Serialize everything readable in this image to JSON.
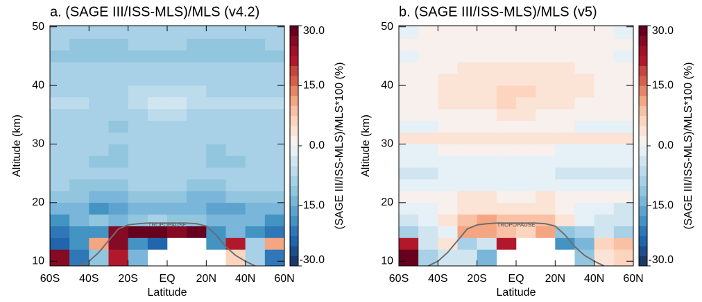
{
  "chart_data": [
    {
      "type": "heatmap",
      "title": "a. (SAGE III/ISS-MLS)/MLS  (v4.2)",
      "xlabel": "Latitude",
      "ylabel": "Altitude (km)",
      "xlim": [
        -60,
        60
      ],
      "ylim": [
        9.2,
        50.2
      ],
      "xticks": [
        {
          "value": -60,
          "label": "60S"
        },
        {
          "value": -40,
          "label": "40S"
        },
        {
          "value": -20,
          "label": "20S"
        },
        {
          "value": 0,
          "label": "EQ"
        },
        {
          "value": 20,
          "label": "20N"
        },
        {
          "value": 40,
          "label": "40N"
        },
        {
          "value": 60,
          "label": "60N"
        }
      ],
      "yticks": [
        10,
        20,
        30,
        40,
        50
      ],
      "x_edges": [
        -60,
        -50,
        -40,
        -30,
        -20,
        -10,
        0,
        10,
        20,
        30,
        40,
        50,
        60
      ],
      "y_edges": [
        9.2,
        12,
        14,
        16,
        18,
        20,
        22,
        24,
        26,
        28,
        30,
        32,
        34,
        36,
        38,
        40,
        42,
        44,
        46,
        48,
        50.2
      ],
      "z": [
        [
          25,
          -22,
          -12,
          20,
          -15,
          null,
          null,
          null,
          null,
          5,
          -8,
          -22
        ],
        [
          -25,
          -18,
          10,
          25,
          -20,
          -25,
          null,
          null,
          -20,
          20,
          -10,
          12
        ],
        [
          -22,
          -20,
          -18,
          25,
          28,
          28,
          25,
          28,
          -20,
          -15,
          -18,
          -22
        ],
        [
          -18,
          -15,
          -12,
          -15,
          -12,
          -10,
          -12,
          -12,
          -15,
          -15,
          -14,
          -18
        ],
        [
          -15,
          -15,
          -18,
          -16,
          -14,
          -14,
          -14,
          -15,
          -16,
          -16,
          -15,
          -15
        ],
        [
          -12,
          -12,
          -14,
          -14,
          -12,
          -12,
          -12,
          -13,
          -14,
          -12,
          -12,
          -12
        ],
        [
          -10,
          -11,
          -12,
          -12,
          -10,
          -10,
          -10,
          -11,
          -11,
          -10,
          -10,
          -10
        ],
        [
          -8,
          -9,
          -10,
          -10,
          -9,
          -8,
          -8,
          -9,
          -10,
          -9,
          -9,
          -8
        ],
        [
          -10,
          -10,
          -11,
          -12,
          -10,
          -9,
          -9,
          -10,
          -12,
          -11,
          -10,
          -10
        ],
        [
          -9,
          -9,
          -10,
          -11,
          -10,
          -9,
          -9,
          -10,
          -11,
          -10,
          -9,
          -9
        ],
        [
          -8,
          -8,
          -9,
          -10,
          -9,
          -8,
          -8,
          -9,
          -10,
          -9,
          -8,
          -8
        ],
        [
          -9,
          -9,
          -10,
          -11,
          -10,
          -9,
          -9,
          -10,
          -10,
          -9,
          -9,
          -9
        ],
        [
          -8,
          -8,
          -9,
          -10,
          -8,
          -7,
          -7,
          -8,
          -9,
          -8,
          -8,
          -8
        ],
        [
          -7,
          -7,
          -8,
          -8,
          -6,
          -4,
          -5,
          -6,
          -7,
          -7,
          -7,
          -7
        ],
        [
          -8,
          -8,
          -8,
          -8,
          -7,
          -6,
          -6,
          -7,
          -8,
          -8,
          -8,
          -8
        ],
        [
          -9,
          -9,
          -9,
          -10,
          -9,
          -8,
          -8,
          -9,
          -10,
          -9,
          -9,
          -9
        ],
        [
          -10,
          -10,
          -10,
          -10,
          -10,
          -9,
          -9,
          -10,
          -10,
          -10,
          -10,
          -10
        ],
        [
          -12,
          -12,
          -12,
          -12,
          -11,
          -11,
          -11,
          -12,
          -12,
          -12,
          -12,
          -12
        ],
        [
          -10,
          -11,
          -11,
          -11,
          -10,
          -10,
          -10,
          -11,
          -11,
          -11,
          -11,
          -10
        ],
        [
          -9,
          -10,
          -10,
          -10,
          -9,
          -9,
          -9,
          -10,
          -10,
          -10,
          -10,
          -9
        ]
      ],
      "colorbar": {
        "label": "(SAGE III/ISS-MLS)/MLS*100 (%)",
        "clim": [
          -30,
          30
        ],
        "ticks": [
          {
            "value": -30,
            "label": "-30.0"
          },
          {
            "value": -15,
            "label": "-15.0"
          },
          {
            "value": 0,
            "label": "0.0"
          },
          {
            "value": 15,
            "label": "15.0"
          },
          {
            "value": 30,
            "label": "30.0"
          }
        ],
        "colors": [
          "#1b3a6b",
          "#1f4e8c",
          "#2166ac",
          "#3077b8",
          "#4393c3",
          "#5ea3ce",
          "#7ab6d9",
          "#92c5de",
          "#a8d0e6",
          "#bcdcec",
          "#d1e5f0",
          "#e6f0f7",
          "#f7f0ec",
          "#fbe3d6",
          "#fdd5bf",
          "#f8c0a5",
          "#f4a582",
          "#e58668",
          "#d6604d",
          "#c5463e",
          "#b2182b",
          "#9d1229",
          "#850b25",
          "#67001f"
        ]
      },
      "tropopause": {
        "name": "TROPOPAUSE",
        "color": "#6e6e6e",
        "x": [
          -45,
          -40,
          -35,
          -30,
          -25,
          -20,
          -15,
          -10,
          -5,
          0,
          5,
          10,
          15,
          20,
          25,
          30,
          35,
          40,
          45
        ],
        "y": [
          9.2,
          10,
          11.5,
          13.5,
          15.5,
          16.2,
          16.4,
          16.5,
          16.5,
          16.5,
          16.5,
          16.5,
          16.4,
          16,
          14.5,
          12.5,
          11,
          10,
          9.2
        ]
      }
    },
    {
      "type": "heatmap",
      "title": "b. (SAGE III/ISS-MLS)/MLS  (v5)",
      "xlabel": "Latitude",
      "ylabel": "Altitude (km)",
      "xlim": [
        -60,
        60
      ],
      "ylim": [
        9.2,
        50.2
      ],
      "xticks": [
        {
          "value": -60,
          "label": "60S"
        },
        {
          "value": -40,
          "label": "40S"
        },
        {
          "value": -20,
          "label": "20S"
        },
        {
          "value": 0,
          "label": "EQ"
        },
        {
          "value": 20,
          "label": "20N"
        },
        {
          "value": 40,
          "label": "40N"
        },
        {
          "value": 60,
          "label": "60N"
        }
      ],
      "yticks": [
        10,
        20,
        30,
        40,
        50
      ],
      "x_edges": [
        -60,
        -50,
        -40,
        -30,
        -20,
        -10,
        0,
        10,
        20,
        30,
        40,
        50,
        60
      ],
      "y_edges": [
        9.2,
        12,
        14,
        16,
        18,
        20,
        22,
        24,
        26,
        28,
        30,
        32,
        34,
        36,
        38,
        40,
        42,
        44,
        46,
        48,
        50.2
      ],
      "z": [
        [
          28,
          -8,
          -3,
          -5,
          -15,
          null,
          null,
          null,
          null,
          -12,
          3,
          5
        ],
        [
          20,
          -5,
          3,
          -10,
          -5,
          20,
          null,
          null,
          -20,
          -15,
          5,
          8
        ],
        [
          -10,
          -5,
          -2,
          10,
          10,
          8,
          5,
          10,
          -12,
          -10,
          -5,
          -8
        ],
        [
          -3,
          -2,
          3,
          8,
          10,
          8,
          8,
          8,
          3,
          -2,
          -3,
          -5
        ],
        [
          -2,
          -1,
          1,
          3,
          4,
          3,
          3,
          3,
          2,
          -1,
          -2,
          -3
        ],
        [
          2,
          1,
          2,
          3,
          3,
          2,
          2,
          3,
          2,
          1,
          1,
          2
        ],
        [
          -2,
          -2,
          -1,
          -1,
          -1,
          -1,
          -1,
          -2,
          -2,
          -2,
          -2,
          -2
        ],
        [
          -3,
          -3,
          -2,
          -2,
          -2,
          -1,
          -1,
          -2,
          -3,
          -3,
          -3,
          -3
        ],
        [
          -2,
          -2,
          -1,
          -1,
          -1,
          -1,
          -1,
          -1,
          -2,
          -2,
          -2,
          -2
        ],
        [
          -1,
          -1,
          0,
          0,
          0,
          0,
          0,
          0,
          -1,
          -1,
          -1,
          -1
        ],
        [
          3,
          4,
          4,
          4,
          3,
          3,
          3,
          4,
          4,
          4,
          3,
          3
        ],
        [
          -1,
          -1,
          0,
          0,
          0,
          1,
          1,
          0,
          0,
          -1,
          -1,
          -1
        ],
        [
          1,
          1,
          2,
          2,
          2,
          3,
          3,
          2,
          2,
          1,
          1,
          1
        ],
        [
          2,
          2,
          3,
          3,
          3,
          5,
          4,
          3,
          3,
          2,
          2,
          2
        ],
        [
          2,
          2,
          3,
          4,
          4,
          5,
          5,
          4,
          4,
          3,
          2,
          2
        ],
        [
          1,
          2,
          3,
          4,
          4,
          4,
          4,
          4,
          4,
          3,
          2,
          1
        ],
        [
          0,
          1,
          2,
          3,
          3,
          3,
          3,
          3,
          3,
          2,
          1,
          0
        ],
        [
          -1,
          0,
          1,
          1,
          1,
          1,
          1,
          1,
          1,
          0,
          0,
          -1
        ],
        [
          0,
          1,
          2,
          2,
          2,
          2,
          2,
          2,
          2,
          1,
          1,
          0
        ],
        [
          -1,
          0,
          1,
          1,
          1,
          1,
          1,
          1,
          1,
          0,
          0,
          -1
        ]
      ],
      "colorbar": {
        "label": "(SAGE III/ISS-MLS)/MLS*100 (%)",
        "clim": [
          -30,
          30
        ],
        "ticks": [
          {
            "value": -30,
            "label": "-30.0"
          },
          {
            "value": -15,
            "label": "-15.0"
          },
          {
            "value": 0,
            "label": "0.0"
          },
          {
            "value": 15,
            "label": "15.0"
          },
          {
            "value": 30,
            "label": "30.0"
          }
        ],
        "colors": [
          "#1b3a6b",
          "#1f4e8c",
          "#2166ac",
          "#3077b8",
          "#4393c3",
          "#5ea3ce",
          "#7ab6d9",
          "#92c5de",
          "#a8d0e6",
          "#bcdcec",
          "#d1e5f0",
          "#e6f0f7",
          "#f7f0ec",
          "#fbe3d6",
          "#fdd5bf",
          "#f8c0a5",
          "#f4a582",
          "#e58668",
          "#d6604d",
          "#c5463e",
          "#b2182b",
          "#9d1229",
          "#850b25",
          "#67001f"
        ]
      },
      "tropopause": {
        "name": "TROPOPAUSE",
        "color": "#6e6e6e",
        "x": [
          -45,
          -40,
          -35,
          -30,
          -25,
          -20,
          -15,
          -10,
          -5,
          0,
          5,
          10,
          15,
          20,
          25,
          30,
          35,
          40,
          45
        ],
        "y": [
          9.2,
          10,
          11.5,
          13.5,
          15.5,
          16.2,
          16.4,
          16.5,
          16.5,
          16.5,
          16.5,
          16.5,
          16.4,
          16,
          14.5,
          12.5,
          11,
          10,
          9.2
        ]
      }
    }
  ]
}
